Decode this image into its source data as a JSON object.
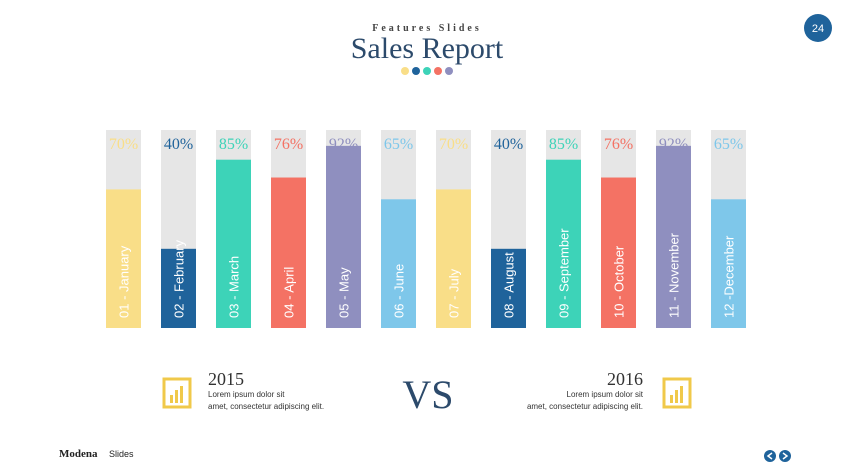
{
  "header": {
    "subtitle": "Features Slides",
    "title": "Sales Report",
    "page": "24"
  },
  "chart_data": {
    "type": "bar",
    "categories": [
      "01 - January",
      "02 - February",
      "03 - March",
      "04 - April",
      "05 - May",
      "06 - June",
      "07 - July",
      "08 - August",
      "09 - September",
      "10 - October",
      "11 - November",
      "12 -December"
    ],
    "values": [
      70,
      40,
      85,
      76,
      92,
      65,
      70,
      40,
      85,
      76,
      92,
      65
    ],
    "value_labels": [
      "70%",
      "40%",
      "85%",
      "76%",
      "92%",
      "65%",
      "70%",
      "40%",
      "85%",
      "76%",
      "92%",
      "65%"
    ],
    "colors": [
      "#f9de88",
      "#1f639b",
      "#3dd3b8",
      "#f47264",
      "#8f8fbf",
      "#7ec7ea",
      "#f9de88",
      "#1f639b",
      "#3dd3b8",
      "#f47264",
      "#8f8fbf",
      "#7ec7ea"
    ],
    "ylim": [
      0,
      100
    ]
  },
  "compare": {
    "left": {
      "year": "2015",
      "text": [
        "Lorem ipsum dolor sit",
        "amet, consectetur adipiscing elit."
      ]
    },
    "vs": "VS",
    "right": {
      "year": "2016",
      "text": [
        "Lorem ipsum dolor sit",
        "amet, consectetur adipiscing elit."
      ]
    }
  },
  "footer": {
    "brand": "Modena",
    "suffix": "Slides"
  }
}
